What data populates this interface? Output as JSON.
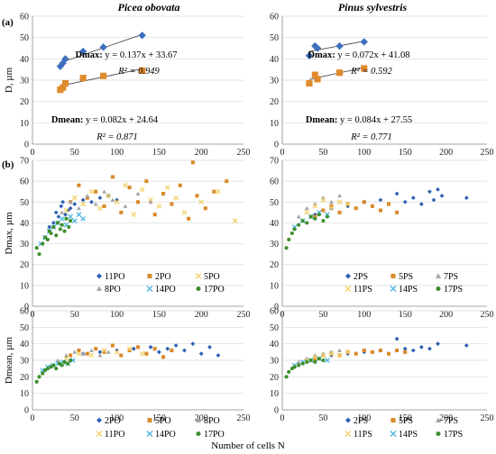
{
  "figure": {
    "title_left": "Picea obovata",
    "title_right": "Pinus sylvestris",
    "panel_a_label": "(a)",
    "panel_b_label": "(b)",
    "x_axis_label": "Number of cells N"
  },
  "colors": {
    "dmax_blue": "#3f6fbf",
    "dmean_orange": "#e08a2c",
    "blue": "#2e5fb3",
    "orange": "#d98a2b",
    "gray": "#a2a2a8",
    "yellow": "#f2d36b",
    "cyan": "#4ab6e0",
    "green": "#3e8f2e",
    "trend": "#4a4a4a"
  },
  "chart_data": [
    {
      "id": "a-left",
      "type": "scatter",
      "ylabel": "D, µm",
      "xlim": [
        0,
        250
      ],
      "ylim": [
        0,
        60
      ],
      "xticks": [
        0,
        50,
        100,
        150,
        200,
        250
      ],
      "yticks": [
        0,
        10,
        20,
        30,
        40,
        50,
        60
      ],
      "series": [
        {
          "name": "Dmax",
          "marker": "diamond",
          "color": "#3f6fbf",
          "x": [
            33,
            36,
            39,
            60,
            84,
            130
          ],
          "y": [
            36.5,
            38,
            40,
            43.5,
            45.5,
            51
          ]
        },
        {
          "name": "Dmean",
          "marker": "square",
          "color": "#e08a2c",
          "x": [
            33,
            36,
            39,
            60,
            84,
            130
          ],
          "y": [
            25.5,
            26.5,
            28.5,
            31,
            32,
            34.5
          ]
        }
      ],
      "trendlines": [
        {
          "slope": 0.137,
          "intercept": 33.67,
          "x": [
            33,
            130
          ],
          "label": "Dmax:",
          "equation": "y = 0.137x + 33.67",
          "r2": "R² = 0.949"
        },
        {
          "slope": 0.082,
          "intercept": 24.64,
          "x": [
            33,
            130
          ],
          "label": "Dmean:",
          "equation": "y = 0.082x + 24.64",
          "r2": "R² = 0.871"
        }
      ]
    },
    {
      "id": "a-right",
      "type": "scatter",
      "ylabel": "",
      "xlim": [
        0,
        250
      ],
      "ylim": [
        0,
        60
      ],
      "xticks": [
        0,
        50,
        100,
        150,
        200,
        250
      ],
      "yticks": [
        0,
        10,
        20,
        30,
        40,
        50,
        60
      ],
      "series": [
        {
          "name": "Dmax",
          "marker": "diamond",
          "color": "#3f6fbf",
          "x": [
            33,
            40,
            43,
            70,
            100
          ],
          "y": [
            41.5,
            46,
            45,
            46,
            48
          ]
        },
        {
          "name": "Dmean",
          "marker": "square",
          "color": "#e08a2c",
          "x": [
            33,
            40,
            43,
            70,
            100
          ],
          "y": [
            28.5,
            32.5,
            30.5,
            33.5,
            35.5
          ]
        }
      ],
      "trendlines": [
        {
          "slope": 0.072,
          "intercept": 41.08,
          "x": [
            33,
            100
          ],
          "label": "Dmax:",
          "equation": "y = 0.072x + 41.08",
          "r2": "R² = 0.592"
        },
        {
          "slope": 0.084,
          "intercept": 27.55,
          "x": [
            33,
            100
          ],
          "label": "Dmean:",
          "equation": "y = 0.084x + 27.55",
          "r2": "R² = 0.771"
        }
      ]
    },
    {
      "id": "b-left-dmax",
      "type": "scatter",
      "ylabel": "Dmax, µm",
      "xlim": [
        0,
        250
      ],
      "ylim": [
        0,
        70
      ],
      "xticks": [
        0,
        50,
        100,
        150,
        200,
        250
      ],
      "yticks": [
        0,
        10,
        20,
        30,
        40,
        50,
        60,
        70
      ],
      "legend": [
        "11PO",
        "2PO",
        "5PO",
        "8PO",
        "14PO",
        "17PO"
      ],
      "series": [
        {
          "name": "11PO",
          "marker": "diamond",
          "color": "#2e5fb3",
          "x": [
            20,
            25,
            28,
            31,
            34,
            36,
            39,
            42,
            45,
            50,
            60,
            70,
            80,
            90,
            100
          ],
          "y": [
            38,
            40,
            45,
            43,
            48,
            50,
            44,
            46,
            47,
            49,
            51,
            50,
            52,
            53,
            51
          ]
        },
        {
          "name": "2PO",
          "marker": "square",
          "color": "#d98a2b",
          "x": [
            45,
            55,
            65,
            75,
            85,
            95,
            105,
            115,
            125,
            135,
            145,
            155,
            165,
            175,
            185,
            190,
            195,
            205,
            215,
            230
          ],
          "y": [
            50,
            58,
            52,
            55,
            48,
            62,
            45,
            57,
            50,
            60,
            44,
            54,
            49,
            58,
            42,
            69,
            53,
            47,
            55,
            60
          ]
        },
        {
          "name": "5PO",
          "marker": "x",
          "color": "#f2d36b",
          "x": [
            40,
            50,
            60,
            70,
            80,
            90,
            100,
            110,
            120,
            130,
            140,
            150,
            160,
            170,
            180,
            200,
            220,
            240
          ],
          "y": [
            46,
            52,
            49,
            55,
            47,
            53,
            50,
            58,
            44,
            56,
            51,
            48,
            57,
            52,
            45,
            50,
            55,
            41
          ]
        },
        {
          "name": "8PO",
          "marker": "triangle",
          "color": "#a2a2a8",
          "x": [
            35,
            45,
            55,
            65,
            75,
            85,
            95,
            110,
            125,
            140
          ],
          "y": [
            45,
            50,
            47,
            53,
            49,
            55,
            51,
            48,
            54,
            50
          ]
        },
        {
          "name": "14PO",
          "marker": "x",
          "color": "#4ab6e0",
          "x": [
            10,
            15,
            20,
            25,
            30,
            35,
            40,
            45,
            50,
            55,
            60
          ],
          "y": [
            30,
            33,
            36,
            38,
            40,
            42,
            39,
            43,
            41,
            44,
            42
          ]
        },
        {
          "name": "17PO",
          "marker": "circle",
          "color": "#3e8f2e",
          "x": [
            5,
            8,
            12,
            15,
            18,
            20,
            22,
            25,
            28,
            30,
            33,
            35,
            38,
            40,
            43,
            45
          ],
          "y": [
            28,
            25,
            30,
            33,
            32,
            36,
            35,
            38,
            34,
            40,
            37,
            39,
            36,
            42,
            38,
            41
          ]
        }
      ]
    },
    {
      "id": "b-right-dmax",
      "type": "scatter",
      "ylabel": "",
      "xlim": [
        0,
        250
      ],
      "ylim": [
        0,
        70
      ],
      "xticks": [
        0,
        50,
        100,
        150,
        200,
        250
      ],
      "yticks": [
        0,
        10,
        20,
        30,
        40,
        50,
        60,
        70
      ],
      "legend": [
        "2PS",
        "5PS",
        "7PS",
        "11PS",
        "14PS",
        "17PS"
      ],
      "series": [
        {
          "name": "2PS",
          "marker": "diamond",
          "color": "#2e5fb3",
          "x": [
            40,
            60,
            80,
            100,
            120,
            140,
            150,
            160,
            170,
            180,
            185,
            190,
            195,
            225
          ],
          "y": [
            44,
            47,
            48,
            50,
            51,
            54,
            50,
            52,
            49,
            55,
            51,
            56,
            53,
            52
          ]
        },
        {
          "name": "5PS",
          "marker": "square",
          "color": "#d98a2b",
          "x": [
            40,
            50,
            60,
            70,
            80,
            90,
            100,
            110,
            120,
            130,
            140
          ],
          "y": [
            43,
            46,
            48,
            45,
            49,
            47,
            50,
            48,
            46,
            49,
            45
          ]
        },
        {
          "name": "7PS",
          "marker": "triangle",
          "color": "#a2a2a8",
          "x": [
            20,
            30,
            40,
            50,
            60,
            70
          ],
          "y": [
            43,
            47,
            49,
            52,
            50,
            53
          ]
        },
        {
          "name": "11PS",
          "marker": "x",
          "color": "#f2d36b",
          "x": [
            30,
            40,
            50,
            60,
            70,
            80
          ],
          "y": [
            45,
            48,
            51,
            47,
            50,
            49
          ]
        },
        {
          "name": "14PS",
          "marker": "x",
          "color": "#4ab6e0",
          "x": [
            15,
            25,
            35,
            45,
            55
          ],
          "y": [
            38,
            41,
            43,
            45,
            44
          ]
        },
        {
          "name": "17PS",
          "marker": "circle",
          "color": "#3e8f2e",
          "x": [
            5,
            8,
            12,
            15,
            20,
            25,
            30,
            35,
            40,
            45,
            50,
            55
          ],
          "y": [
            28,
            32,
            35,
            37,
            39,
            41,
            40,
            43,
            42,
            44,
            41,
            43
          ]
        }
      ]
    },
    {
      "id": "b-left-dmean",
      "type": "scatter",
      "ylabel": "Dmean, µm",
      "xlim": [
        0,
        250
      ],
      "ylim": [
        0,
        60
      ],
      "xticks": [
        0,
        50,
        100,
        150,
        200,
        250
      ],
      "yticks": [
        0,
        10,
        20,
        30,
        40,
        50,
        60
      ],
      "legend": [
        "2PO",
        "5PO",
        "8PO",
        "11PO",
        "14PO",
        "17PO"
      ],
      "series": [
        {
          "name": "2PO",
          "marker": "diamond",
          "color": "#2e5fb3",
          "x": [
            40,
            60,
            80,
            100,
            120,
            140,
            150,
            160,
            170,
            180,
            190,
            200,
            210,
            220
          ],
          "y": [
            32,
            34,
            35,
            36,
            37,
            38,
            35,
            37,
            39,
            36,
            40,
            34,
            38,
            33
          ]
        },
        {
          "name": "5PO",
          "marker": "square",
          "color": "#d98a2b",
          "x": [
            45,
            55,
            65,
            75,
            85,
            95,
            105,
            115,
            125,
            135,
            145,
            155,
            165
          ],
          "y": [
            33,
            36,
            34,
            37,
            35,
            39,
            33,
            36,
            38,
            34,
            37,
            32,
            36
          ]
        },
        {
          "name": "8PO",
          "marker": "triangle",
          "color": "#a2a2a8",
          "x": [
            30,
            40,
            50,
            60,
            70,
            80,
            90
          ],
          "y": [
            30,
            33,
            35,
            34,
            36,
            33,
            35
          ]
        },
        {
          "name": "11PO",
          "marker": "x",
          "color": "#f2d36b",
          "x": [
            40,
            55,
            70,
            85,
            100,
            115,
            130
          ],
          "y": [
            31,
            34,
            33,
            36,
            35,
            37,
            34
          ]
        },
        {
          "name": "14PO",
          "marker": "x",
          "color": "#4ab6e0",
          "x": [
            12,
            18,
            24,
            30,
            36,
            42,
            48
          ],
          "y": [
            24,
            26,
            27,
            28,
            29,
            28,
            30
          ]
        },
        {
          "name": "17PO",
          "marker": "circle",
          "color": "#3e8f2e",
          "x": [
            5,
            8,
            12,
            15,
            18,
            22,
            25,
            28,
            32,
            35,
            38,
            42,
            45
          ],
          "y": [
            17,
            20,
            22,
            24,
            25,
            26,
            27,
            25,
            28,
            27,
            29,
            28,
            30
          ]
        }
      ]
    },
    {
      "id": "b-right-dmean",
      "type": "scatter",
      "ylabel": "",
      "xlim": [
        0,
        250
      ],
      "ylim": [
        0,
        60
      ],
      "xticks": [
        0,
        50,
        100,
        150,
        200,
        250
      ],
      "yticks": [
        0,
        10,
        20,
        30,
        40,
        50,
        60
      ],
      "legend": [
        "2PS",
        "5PS",
        "7PS",
        "11PS",
        "14PS",
        "17PS"
      ],
      "series": [
        {
          "name": "2PS",
          "marker": "diamond",
          "color": "#2e5fb3",
          "x": [
            40,
            60,
            80,
            100,
            120,
            140,
            150,
            160,
            170,
            180,
            190,
            225
          ],
          "y": [
            31,
            33,
            34,
            35,
            36,
            43,
            37,
            36,
            38,
            37,
            40,
            39
          ]
        },
        {
          "name": "5PS",
          "marker": "square",
          "color": "#d98a2b",
          "x": [
            40,
            50,
            60,
            70,
            80,
            90,
            100,
            110,
            120,
            130,
            140,
            150
          ],
          "y": [
            31,
            33,
            34,
            33,
            35,
            34,
            36,
            35,
            36,
            34,
            36,
            35
          ]
        },
        {
          "name": "7PS",
          "marker": "triangle",
          "color": "#a2a2a8",
          "x": [
            20,
            30,
            40,
            50,
            60,
            70
          ],
          "y": [
            29,
            31,
            33,
            34,
            35,
            36
          ]
        },
        {
          "name": "11PS",
          "marker": "x",
          "color": "#f2d36b",
          "x": [
            30,
            40,
            50,
            60,
            70,
            80
          ],
          "y": [
            30,
            32,
            33,
            34,
            33,
            35
          ]
        },
        {
          "name": "14PS",
          "marker": "x",
          "color": "#4ab6e0",
          "x": [
            15,
            25,
            35,
            45,
            55
          ],
          "y": [
            27,
            29,
            30,
            31,
            30
          ]
        },
        {
          "name": "17PS",
          "marker": "circle",
          "color": "#3e8f2e",
          "x": [
            5,
            8,
            12,
            15,
            20,
            25,
            30,
            35,
            40,
            45,
            50
          ],
          "y": [
            20,
            23,
            25,
            26,
            27,
            28,
            29,
            30,
            29,
            31,
            30
          ]
        }
      ]
    }
  ]
}
